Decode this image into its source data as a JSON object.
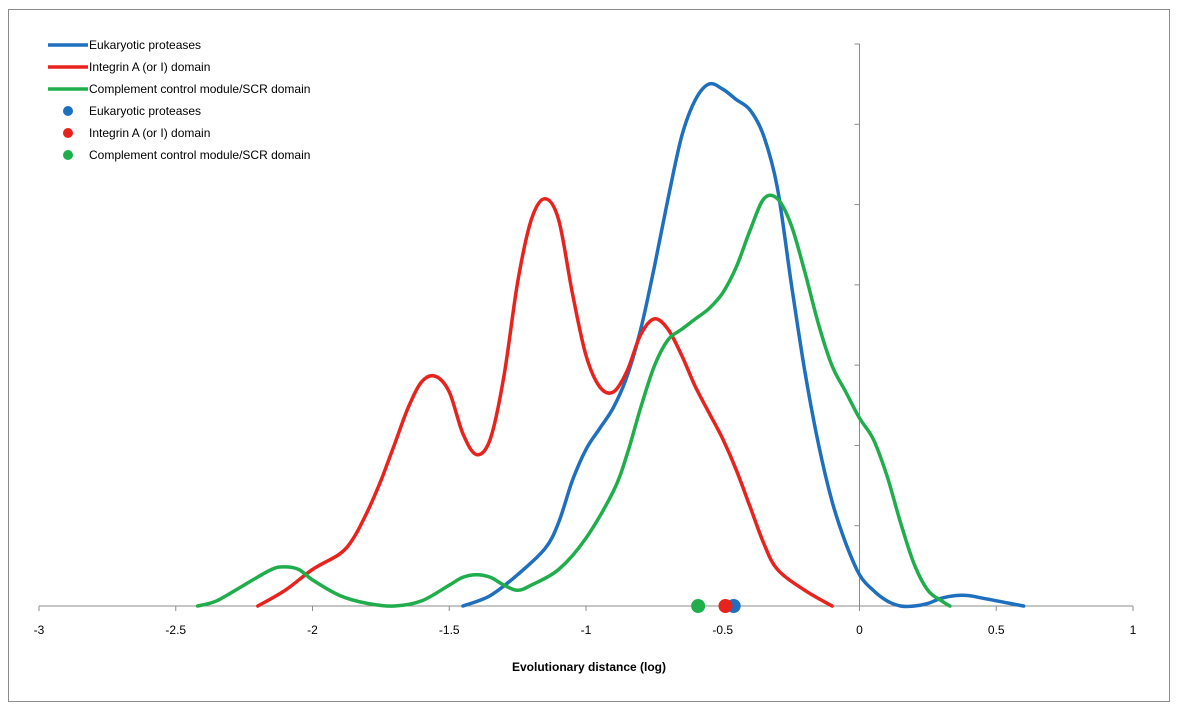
{
  "chart_data": {
    "type": "line",
    "title": "",
    "xlabel": "Evolutionary distance (log)",
    "ylabel": "",
    "xlim": [
      -3,
      1
    ],
    "ylim": [
      0,
      1.0
    ],
    "x_ticks": [
      "-3",
      "-2.5",
      "-2",
      "-1.5",
      "-1",
      "-0.5",
      "0",
      "0.5",
      "1"
    ],
    "y_tick_count": 7,
    "grid": false,
    "legend_position": "top-left",
    "series": [
      {
        "name": "Eukaryotic proteases",
        "kind": "line",
        "color": "#1f6fbf",
        "points": [
          [
            -1.45,
            0.0
          ],
          [
            -1.35,
            0.02
          ],
          [
            -1.25,
            0.06
          ],
          [
            -1.15,
            0.11
          ],
          [
            -1.1,
            0.16
          ],
          [
            -1.05,
            0.24
          ],
          [
            -1.0,
            0.3
          ],
          [
            -0.95,
            0.34
          ],
          [
            -0.9,
            0.38
          ],
          [
            -0.85,
            0.44
          ],
          [
            -0.8,
            0.53
          ],
          [
            -0.75,
            0.65
          ],
          [
            -0.7,
            0.78
          ],
          [
            -0.65,
            0.9
          ],
          [
            -0.6,
            0.97
          ],
          [
            -0.55,
            1.0
          ],
          [
            -0.5,
            0.99
          ],
          [
            -0.45,
            0.97
          ],
          [
            -0.4,
            0.95
          ],
          [
            -0.35,
            0.9
          ],
          [
            -0.3,
            0.8
          ],
          [
            -0.25,
            0.62
          ],
          [
            -0.2,
            0.45
          ],
          [
            -0.15,
            0.31
          ],
          [
            -0.1,
            0.2
          ],
          [
            -0.05,
            0.12
          ],
          [
            0.0,
            0.06
          ],
          [
            0.05,
            0.03
          ],
          [
            0.1,
            0.01
          ],
          [
            0.15,
            0.0
          ],
          [
            0.2,
            0.0
          ],
          [
            0.25,
            0.005
          ],
          [
            0.3,
            0.015
          ],
          [
            0.35,
            0.02
          ],
          [
            0.4,
            0.02
          ],
          [
            0.45,
            0.015
          ],
          [
            0.5,
            0.01
          ],
          [
            0.55,
            0.005
          ],
          [
            0.6,
            0.0
          ]
        ]
      },
      {
        "name": "Integrin A (or I) domain",
        "kind": "line",
        "color": "#e8231e",
        "points": [
          [
            -2.2,
            0.0
          ],
          [
            -2.1,
            0.03
          ],
          [
            -2.0,
            0.07
          ],
          [
            -1.9,
            0.1
          ],
          [
            -1.85,
            0.13
          ],
          [
            -1.8,
            0.18
          ],
          [
            -1.75,
            0.24
          ],
          [
            -1.7,
            0.31
          ],
          [
            -1.65,
            0.38
          ],
          [
            -1.6,
            0.43
          ],
          [
            -1.55,
            0.44
          ],
          [
            -1.5,
            0.41
          ],
          [
            -1.45,
            0.33
          ],
          [
            -1.4,
            0.29
          ],
          [
            -1.35,
            0.32
          ],
          [
            -1.3,
            0.44
          ],
          [
            -1.25,
            0.62
          ],
          [
            -1.2,
            0.74
          ],
          [
            -1.15,
            0.78
          ],
          [
            -1.1,
            0.74
          ],
          [
            -1.05,
            0.6
          ],
          [
            -1.0,
            0.48
          ],
          [
            -0.95,
            0.42
          ],
          [
            -0.9,
            0.41
          ],
          [
            -0.85,
            0.45
          ],
          [
            -0.8,
            0.52
          ],
          [
            -0.75,
            0.55
          ],
          [
            -0.7,
            0.53
          ],
          [
            -0.65,
            0.48
          ],
          [
            -0.6,
            0.42
          ],
          [
            -0.55,
            0.37
          ],
          [
            -0.5,
            0.32
          ],
          [
            -0.45,
            0.26
          ],
          [
            -0.4,
            0.19
          ],
          [
            -0.35,
            0.12
          ],
          [
            -0.3,
            0.07
          ],
          [
            -0.2,
            0.03
          ],
          [
            -0.1,
            0.0
          ]
        ]
      },
      {
        "name": "Complement control module/SCR domain",
        "kind": "line",
        "color": "#1fae4b",
        "points": [
          [
            -2.42,
            0.0
          ],
          [
            -2.35,
            0.01
          ],
          [
            -2.25,
            0.04
          ],
          [
            -2.15,
            0.07
          ],
          [
            -2.1,
            0.075
          ],
          [
            -2.05,
            0.07
          ],
          [
            -2.0,
            0.05
          ],
          [
            -1.9,
            0.02
          ],
          [
            -1.8,
            0.005
          ],
          [
            -1.7,
            0.0
          ],
          [
            -1.6,
            0.01
          ],
          [
            -1.5,
            0.04
          ],
          [
            -1.45,
            0.055
          ],
          [
            -1.4,
            0.06
          ],
          [
            -1.35,
            0.055
          ],
          [
            -1.3,
            0.04
          ],
          [
            -1.25,
            0.03
          ],
          [
            -1.2,
            0.04
          ],
          [
            -1.1,
            0.07
          ],
          [
            -1.0,
            0.13
          ],
          [
            -0.9,
            0.22
          ],
          [
            -0.85,
            0.29
          ],
          [
            -0.8,
            0.38
          ],
          [
            -0.75,
            0.46
          ],
          [
            -0.7,
            0.51
          ],
          [
            -0.65,
            0.53
          ],
          [
            -0.6,
            0.55
          ],
          [
            -0.55,
            0.57
          ],
          [
            -0.5,
            0.6
          ],
          [
            -0.45,
            0.65
          ],
          [
            -0.4,
            0.72
          ],
          [
            -0.35,
            0.78
          ],
          [
            -0.3,
            0.78
          ],
          [
            -0.25,
            0.73
          ],
          [
            -0.2,
            0.64
          ],
          [
            -0.15,
            0.54
          ],
          [
            -0.1,
            0.46
          ],
          [
            -0.05,
            0.41
          ],
          [
            0.0,
            0.36
          ],
          [
            0.05,
            0.32
          ],
          [
            0.1,
            0.25
          ],
          [
            0.15,
            0.16
          ],
          [
            0.2,
            0.08
          ],
          [
            0.25,
            0.03
          ],
          [
            0.3,
            0.01
          ],
          [
            0.33,
            0.0
          ]
        ]
      },
      {
        "name": "Eukaryotic proteases",
        "kind": "point",
        "color": "#1f6fbf",
        "x": -0.46,
        "y": 0.0
      },
      {
        "name": "Integrin A (or I) domain",
        "kind": "point",
        "color": "#e8231e",
        "x": -0.49,
        "y": 0.0
      },
      {
        "name": "Complement control module/SCR domain",
        "kind": "point",
        "color": "#1fae4b",
        "x": -0.59,
        "y": 0.0
      }
    ]
  }
}
